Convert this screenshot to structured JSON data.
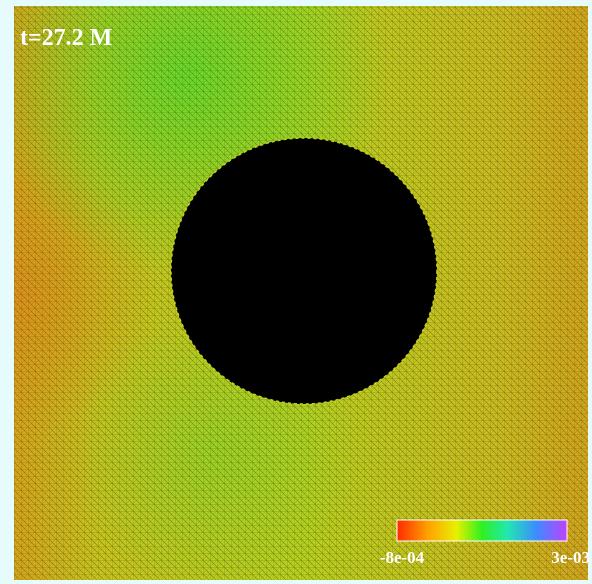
{
  "label": "t=27.2 M",
  "colorbar": {
    "min_label": "-8e-04",
    "max_label": "3e-03"
  }
}
